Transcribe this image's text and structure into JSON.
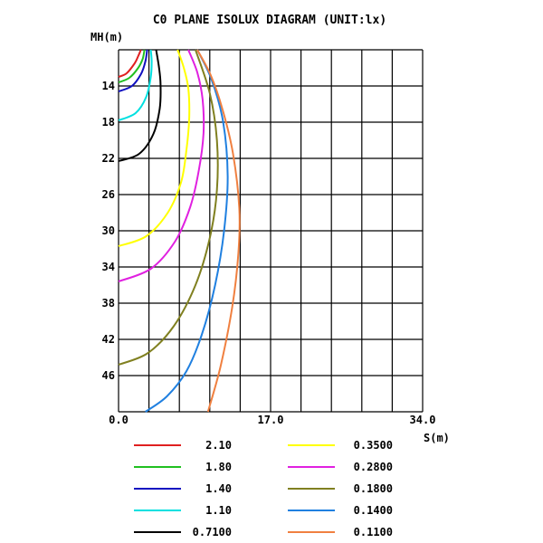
{
  "chart_data": {
    "type": "line",
    "title": "C0 PLANE ISOLUX DIAGRAM (UNIT:lx)",
    "xlabel": "S(m)",
    "ylabel": "MH(m)",
    "xlim": [
      0,
      34
    ],
    "ylim": [
      10,
      50
    ],
    "y_inverted": true,
    "grid": true,
    "x_ticks": [
      "0.0",
      "17.0",
      "34.0"
    ],
    "y_ticks": [
      "14",
      "18",
      "22",
      "26",
      "30",
      "34",
      "38",
      "42",
      "46"
    ],
    "y_tick_values": [
      14,
      18,
      22,
      26,
      30,
      34,
      38,
      42,
      46
    ],
    "legend_position": "bottom",
    "series": [
      {
        "name": "2.10",
        "color": "#e02020",
        "x": [
          0,
          0.9,
          1.8,
          2.2,
          2.5
        ],
        "y": [
          13.0,
          12.6,
          11.5,
          10.7,
          10.0
        ]
      },
      {
        "name": "1.80",
        "color": "#20c020",
        "x": [
          0,
          1.2,
          2.2,
          2.7,
          2.9
        ],
        "y": [
          13.6,
          13.1,
          12.0,
          11.0,
          10.0
        ]
      },
      {
        "name": "1.40",
        "color": "#1010c0",
        "x": [
          0,
          1.5,
          2.5,
          3.0,
          3.2
        ],
        "y": [
          14.6,
          14.0,
          12.7,
          11.3,
          10.0
        ]
      },
      {
        "name": "1.10",
        "color": "#00e0e0",
        "x": [
          0,
          1.9,
          3.1,
          3.6,
          3.7,
          3.6
        ],
        "y": [
          17.8,
          17.0,
          15.2,
          13.0,
          11.3,
          10.0
        ]
      },
      {
        "name": "0.7100",
        "color": "#000000",
        "x": [
          0,
          2.3,
          3.9,
          4.6,
          4.7,
          4.5,
          4.2
        ],
        "y": [
          22.3,
          21.5,
          19.3,
          16.5,
          13.8,
          11.8,
          10.0
        ]
      },
      {
        "name": "0.3500",
        "color": "#ffff00",
        "x": [
          0,
          3.1,
          5.5,
          7.0,
          7.6,
          7.9,
          7.8,
          7.3,
          6.6
        ],
        "y": [
          31.7,
          30.6,
          28.0,
          24.6,
          21.0,
          17.5,
          14.3,
          12.0,
          10.0
        ]
      },
      {
        "name": "0.2800",
        "color": "#e020e0",
        "x": [
          0,
          3.6,
          6.3,
          8.0,
          9.0,
          9.5,
          9.4,
          8.8,
          7.8
        ],
        "y": [
          35.6,
          34.2,
          31.2,
          27.4,
          23.2,
          19.2,
          15.5,
          12.5,
          10.0
        ]
      },
      {
        "name": "0.1800",
        "color": "#808020",
        "x": [
          0,
          3.3,
          6.2,
          8.6,
          10.2,
          11.0,
          11.0,
          10.2,
          8.6
        ],
        "y": [
          44.8,
          43.5,
          40.5,
          36.0,
          30.8,
          25.5,
          20.0,
          14.8,
          10.0
        ]
      },
      {
        "name": "0.1400",
        "color": "#2080e0",
        "x": [
          3.0,
          5.4,
          7.6,
          9.3,
          10.8,
          11.8,
          12.2,
          11.7,
          10.4,
          8.8
        ],
        "y": [
          50.0,
          48.3,
          45.5,
          41.5,
          36.0,
          30.0,
          24.0,
          18.0,
          13.3,
          10.0
        ]
      },
      {
        "name": "0.1100",
        "color": "#f08040",
        "x": [
          10.0,
          11.4,
          12.7,
          13.4,
          13.5,
          12.8,
          11.6,
          10.3,
          8.8
        ],
        "y": [
          50.0,
          45.0,
          38.5,
          32.5,
          27.5,
          21.5,
          16.5,
          12.8,
          10.0
        ]
      }
    ]
  }
}
